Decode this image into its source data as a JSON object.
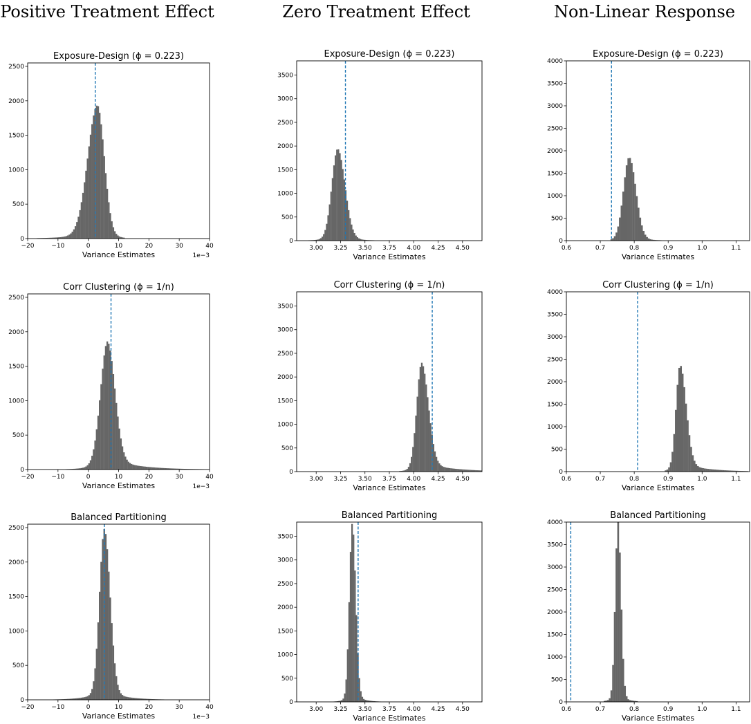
{
  "column_titles": [
    "Positive Treatment Effect",
    "Zero Treatment Effect",
    "Non-Linear Response"
  ],
  "colors": {
    "bar": "#666666",
    "ref_line": "#1f77b4",
    "axis": "#000000"
  },
  "chart_data": [
    {
      "id": "pos-exposure",
      "type": "bar",
      "title": "Exposure-Design (ϕ = 0.223)",
      "xlabel": "Variance Estimates",
      "offset_text": "1e−3",
      "xlim": [
        -20,
        40
      ],
      "ylim": [
        0,
        2550
      ],
      "xticks": [
        -20,
        -10,
        0,
        10,
        20,
        30,
        40
      ],
      "xtick_labels": [
        "−20",
        "−10",
        "0",
        "10",
        "20",
        "30",
        "40"
      ],
      "yticks": [
        0,
        500,
        1000,
        1500,
        2000,
        2500
      ],
      "ref_line_x": 2.3,
      "hist": {
        "center": 3.0,
        "spread_left": 3.2,
        "spread_right": 2.3,
        "tail_left": 7.0,
        "tail_right": 4.0,
        "tail_weight": 0.06,
        "peak": 1930,
        "bin_width": 0.5,
        "min": -17,
        "max": 12
      }
    },
    {
      "id": "zero-exposure",
      "type": "bar",
      "title": "Exposure-Design (ϕ = 0.223)",
      "xlabel": "Variance Estimates",
      "offset_text": "",
      "xlim": [
        2.8,
        4.7
      ],
      "ylim": [
        0,
        3800
      ],
      "xticks": [
        3.0,
        3.25,
        3.5,
        3.75,
        4.0,
        4.25,
        4.5
      ],
      "xtick_labels": [
        "3.00",
        "3.25",
        "3.50",
        "3.75",
        "4.00",
        "4.25",
        "4.50"
      ],
      "yticks": [
        0,
        500,
        1000,
        1500,
        2000,
        2500,
        3000,
        3500
      ],
      "ref_line_x": 3.3,
      "hist": {
        "center": 3.22,
        "spread_left": 0.06,
        "spread_right": 0.075,
        "tail_left": 0.12,
        "tail_right": 0.15,
        "tail_weight": 0.05,
        "peak": 1930,
        "bin_width": 0.015,
        "min": 2.8,
        "max": 3.9
      }
    },
    {
      "id": "nl-exposure",
      "type": "bar",
      "title": "Exposure-Design (ϕ = 0.223)",
      "xlabel": "Variance Estimates",
      "offset_text": "",
      "xlim": [
        0.6,
        1.14
      ],
      "ylim": [
        0,
        4000
      ],
      "xticks": [
        0.6,
        0.7,
        0.8,
        0.9,
        1.0,
        1.1
      ],
      "xtick_labels": [
        "0.6",
        "0.7",
        "0.8",
        "0.9",
        "1.0",
        "1.1"
      ],
      "yticks": [
        0,
        500,
        1000,
        1500,
        2000,
        2500,
        3000,
        3500,
        4000
      ],
      "ref_line_x": 0.733,
      "hist": {
        "center": 0.785,
        "spread_left": 0.017,
        "spread_right": 0.02,
        "tail_left": 0.03,
        "tail_right": 0.04,
        "tail_weight": 0.05,
        "peak": 1840,
        "bin_width": 0.005,
        "min": 0.73,
        "max": 0.9
      }
    },
    {
      "id": "pos-corr",
      "type": "bar",
      "title": "Corr Clustering (ϕ = 1/n)",
      "xlabel": "Variance Estimates",
      "offset_text": "1e−3",
      "xlim": [
        -20,
        40
      ],
      "ylim": [
        0,
        2550
      ],
      "xticks": [
        -20,
        -10,
        0,
        10,
        20,
        30,
        40
      ],
      "xtick_labels": [
        "−20",
        "−10",
        "0",
        "10",
        "20",
        "30",
        "40"
      ],
      "yticks": [
        0,
        500,
        1000,
        1500,
        2000,
        2500
      ],
      "ref_line_x": 7.5,
      "hist": {
        "center": 6.3,
        "spread_left": 2.3,
        "spread_right": 2.5,
        "tail_left": 4.0,
        "tail_right": 9.0,
        "tail_weight": 0.1,
        "peak": 1860,
        "bin_width": 0.5,
        "min": -8,
        "max": 38
      }
    },
    {
      "id": "zero-corr",
      "type": "bar",
      "title": "Corr Clustering (ϕ = 1/n)",
      "xlabel": "Variance Estimates",
      "offset_text": "",
      "xlim": [
        2.8,
        4.7
      ],
      "ylim": [
        0,
        3800
      ],
      "xticks": [
        3.0,
        3.25,
        3.5,
        3.75,
        4.0,
        4.25,
        4.5
      ],
      "xtick_labels": [
        "3.00",
        "3.25",
        "3.50",
        "3.75",
        "4.00",
        "4.25",
        "4.50"
      ],
      "yticks": [
        0,
        500,
        1000,
        1500,
        2000,
        2500,
        3000,
        3500
      ],
      "ref_line_x": 4.19,
      "hist": {
        "center": 4.08,
        "spread_left": 0.05,
        "spread_right": 0.07,
        "tail_left": 0.08,
        "tail_right": 0.3,
        "tail_weight": 0.09,
        "peak": 2300,
        "bin_width": 0.015,
        "min": 3.85,
        "max": 4.7
      }
    },
    {
      "id": "nl-corr",
      "type": "bar",
      "title": "Corr Clustering (ϕ = 1/n)",
      "xlabel": "Variance Estimates",
      "offset_text": "",
      "xlim": [
        0.6,
        1.14
      ],
      "ylim": [
        0,
        4000
      ],
      "xticks": [
        0.6,
        0.7,
        0.8,
        0.9,
        1.0,
        1.1
      ],
      "xtick_labels": [
        "0.6",
        "0.7",
        "0.8",
        "0.9",
        "1.0",
        "1.1"
      ],
      "yticks": [
        0,
        500,
        1000,
        1500,
        2000,
        2500,
        3000,
        3500,
        4000
      ],
      "ref_line_x": 0.81,
      "hist": {
        "center": 0.935,
        "spread_left": 0.012,
        "spread_right": 0.018,
        "tail_left": 0.02,
        "tail_right": 0.07,
        "tail_weight": 0.09,
        "peak": 2350,
        "bin_width": 0.005,
        "min": 0.89,
        "max": 1.13
      }
    },
    {
      "id": "pos-balanced",
      "type": "bar",
      "title": "Balanced Partitioning",
      "xlabel": "Variance Estimates",
      "offset_text": "1e−3",
      "xlim": [
        -20,
        40
      ],
      "ylim": [
        0,
        2550
      ],
      "xticks": [
        -20,
        -10,
        0,
        10,
        20,
        30,
        40
      ],
      "xtick_labels": [
        "−20",
        "−10",
        "0",
        "10",
        "20",
        "30",
        "40"
      ],
      "yticks": [
        0,
        500,
        1000,
        1500,
        2000,
        2500
      ],
      "ref_line_x": 5.3,
      "hist": {
        "center": 5.3,
        "spread_left": 1.6,
        "spread_right": 1.9,
        "tail_left": 5.0,
        "tail_right": 6.0,
        "tail_weight": 0.06,
        "peak": 2480,
        "bin_width": 0.5,
        "min": -15,
        "max": 35
      }
    },
    {
      "id": "zero-balanced",
      "type": "bar",
      "title": "Balanced Partitioning",
      "xlabel": "Variance Estimates",
      "offset_text": "",
      "xlim": [
        2.8,
        4.7
      ],
      "ylim": [
        0,
        3800
      ],
      "xticks": [
        3.0,
        3.25,
        3.5,
        3.75,
        4.0,
        4.25,
        4.5
      ],
      "xtick_labels": [
        "3.00",
        "3.25",
        "3.50",
        "3.75",
        "4.00",
        "4.25",
        "4.50"
      ],
      "yticks": [
        0,
        500,
        1000,
        1500,
        2000,
        2500,
        3000,
        3500
      ],
      "ref_line_x": 3.43,
      "hist": {
        "center": 3.37,
        "spread_left": 0.03,
        "spread_right": 0.035,
        "tail_left": 0.06,
        "tail_right": 0.09,
        "tail_weight": 0.05,
        "peak": 3760,
        "bin_width": 0.015,
        "min": 3.15,
        "max": 3.8
      }
    },
    {
      "id": "nl-balanced",
      "type": "bar",
      "title": "Balanced Partitioning",
      "xlabel": "Variance Estimates",
      "offset_text": "",
      "xlim": [
        0.6,
        1.14
      ],
      "ylim": [
        0,
        4000
      ],
      "xticks": [
        0.6,
        0.7,
        0.8,
        0.9,
        1.0,
        1.1
      ],
      "xtick_labels": [
        "0.6",
        "0.7",
        "0.8",
        "0.9",
        "1.0",
        "1.1"
      ],
      "yticks": [
        0,
        500,
        1000,
        1500,
        2000,
        2500,
        3000,
        3500,
        4000
      ],
      "ref_line_x": 0.613,
      "hist": {
        "center": 0.752,
        "spread_left": 0.008,
        "spread_right": 0.009,
        "tail_left": 0.02,
        "tail_right": 0.025,
        "tail_weight": 0.04,
        "peak": 4000,
        "bin_width": 0.005,
        "min": 0.71,
        "max": 0.81
      }
    }
  ]
}
